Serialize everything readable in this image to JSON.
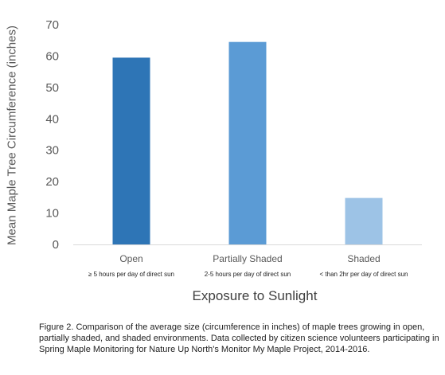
{
  "chart_data": {
    "type": "bar",
    "categories": [
      "Open",
      "Partially Shaded",
      "Shaded"
    ],
    "category_sublabels": [
      "≥ 5 hours per day of direct sun",
      "2-5 hours per day of direct sun",
      "< than 2hr per day of direct sun"
    ],
    "values": [
      59.5,
      64.5,
      14.8
    ],
    "bar_colors": [
      "#2E75B6",
      "#5B9BD5",
      "#9DC3E6"
    ],
    "xlabel": "Exposure to Sunlight",
    "ylabel": "Mean Maple Tree Circumference (inches)",
    "ylim": [
      0,
      70
    ],
    "yticks": [
      0,
      10,
      20,
      30,
      40,
      50,
      60,
      70
    ],
    "grid": false,
    "legend": "none"
  },
  "caption": "Figure 2. Comparison of the average size (circumference in inches) of maple trees growing in open, partially shaded, and shaded environments. Data collected by citizen science volunteers participating in Spring Maple Monitoring for Nature Up North's Monitor My Maple Project, 2014-2016."
}
